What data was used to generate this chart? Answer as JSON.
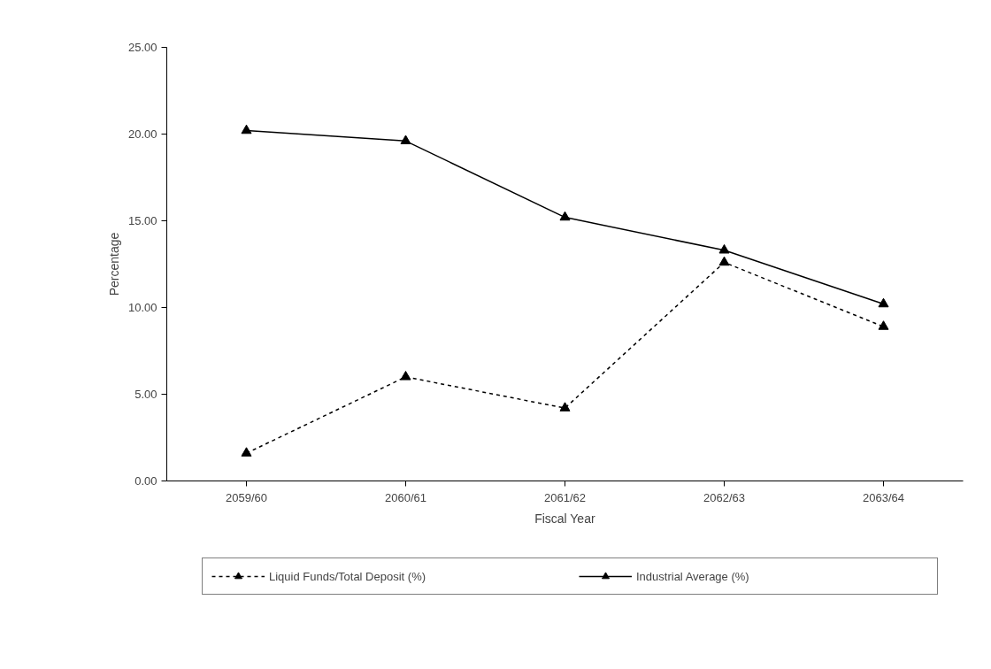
{
  "chart_data": {
    "type": "line",
    "xlabel": "Fiscal Year",
    "ylabel": "Percentage",
    "categories": [
      "2059/60",
      "2060/61",
      "2061/62",
      "2062/63",
      "2063/64"
    ],
    "ylim": [
      0,
      25
    ],
    "yticks": [
      {
        "value": 0,
        "label": "0.00"
      },
      {
        "value": 5,
        "label": "5.00"
      },
      {
        "value": 10,
        "label": "10.00"
      },
      {
        "value": 15,
        "label": "15.00"
      },
      {
        "value": 20,
        "label": "20.00"
      },
      {
        "value": 25,
        "label": "25.00"
      }
    ],
    "grid": false,
    "legend": "bottom",
    "marker": "triangle",
    "series": [
      {
        "name": "Liquid Funds/Total Deposit (%)",
        "color": "#000000",
        "line_style": "dashed",
        "values": [
          1.6,
          6.0,
          4.2,
          12.6,
          8.9
        ]
      },
      {
        "name": "Industrial Average (%)",
        "color": "#000000",
        "line_style": "solid",
        "values": [
          20.2,
          19.6,
          15.2,
          13.3,
          10.2
        ]
      }
    ]
  }
}
